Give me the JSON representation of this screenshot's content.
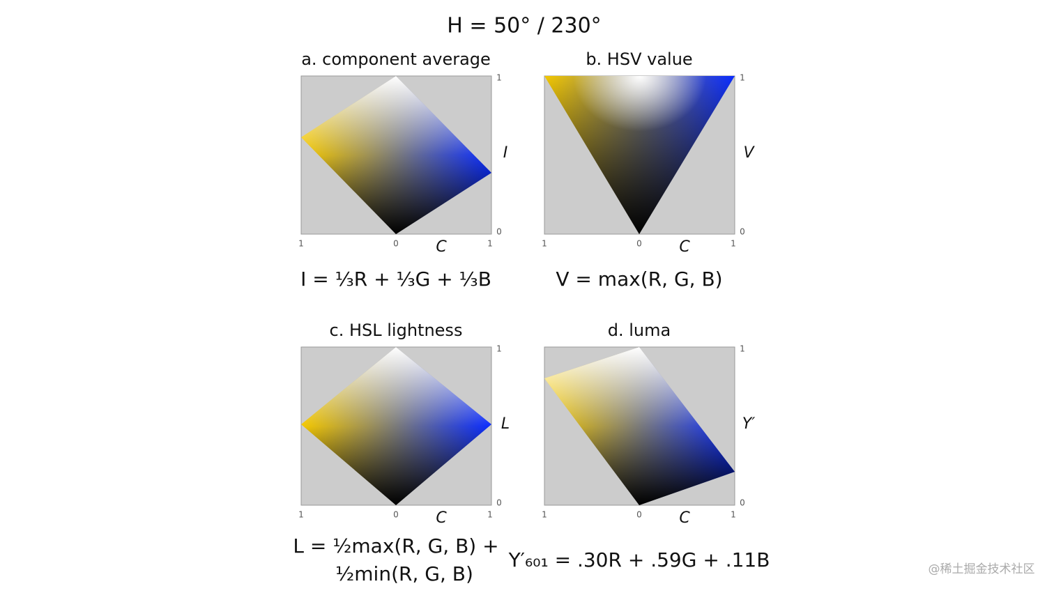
{
  "title": "H = 50° / 230°",
  "panels": [
    {
      "title": "a. component average",
      "axis_label": "I",
      "right_ticks": [
        "1",
        "0"
      ],
      "bottom_ticks": [
        "1",
        "0",
        "1"
      ],
      "x_axis_label": "C",
      "formula": [
        "I = ⅓R + ⅓G + ⅓B"
      ]
    },
    {
      "title": "b. HSV value",
      "axis_label": "V",
      "right_ticks": [
        "1",
        "0"
      ],
      "bottom_ticks": [
        "1",
        "0",
        "1"
      ],
      "x_axis_label": "C",
      "formula": [
        "V = max(R, G, B)"
      ]
    },
    {
      "title": "c. HSL lightness",
      "axis_label": "L",
      "right_ticks": [
        "1",
        "0"
      ],
      "bottom_ticks": [
        "1",
        "0",
        "1"
      ],
      "x_axis_label": "C",
      "formula": [
        "L = ½max(R, G, B) +",
        "½min(R, G, B)"
      ]
    },
    {
      "title": "d. luma",
      "axis_label": "Y′",
      "right_ticks": [
        "1",
        "0"
      ],
      "bottom_ticks": [
        "1",
        "0",
        "1"
      ],
      "x_axis_label": "C",
      "formula": [
        "Y′₆₀₁ = .30R + .59G + .11B"
      ]
    }
  ],
  "watermark": "@稀土掘金技术社区"
}
